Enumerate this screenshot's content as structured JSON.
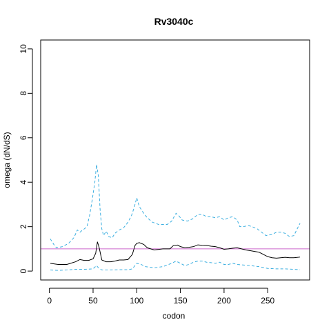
{
  "chart_data": {
    "type": "line",
    "title": "Rv3040c",
    "xlabel": "codon",
    "ylabel": "omega (dN/dS)",
    "xlim": [
      -10,
      298
    ],
    "ylim": [
      -0.4,
      10.4
    ],
    "xticks": [
      0,
      50,
      100,
      150,
      200,
      250
    ],
    "yticks": [
      0,
      2,
      4,
      6,
      8,
      10
    ],
    "grid": false,
    "legend": "none",
    "reference_line": {
      "y": 1,
      "color": "#cc66cc"
    },
    "series": [
      {
        "style": "solid",
        "color": "#000000",
        "points": [
          [
            1,
            0.35
          ],
          [
            10,
            0.3
          ],
          [
            20,
            0.3
          ],
          [
            30,
            0.42
          ],
          [
            35,
            0.52
          ],
          [
            40,
            0.48
          ],
          [
            45,
            0.48
          ],
          [
            50,
            0.55
          ],
          [
            53,
            0.8
          ],
          [
            55,
            1.32
          ],
          [
            57,
            1.05
          ],
          [
            60,
            0.5
          ],
          [
            65,
            0.42
          ],
          [
            70,
            0.42
          ],
          [
            75,
            0.45
          ],
          [
            80,
            0.5
          ],
          [
            85,
            0.5
          ],
          [
            90,
            0.52
          ],
          [
            95,
            0.75
          ],
          [
            98,
            1.15
          ],
          [
            100,
            1.25
          ],
          [
            103,
            1.28
          ],
          [
            108,
            1.2
          ],
          [
            112,
            1.05
          ],
          [
            120,
            0.95
          ],
          [
            130,
            1.0
          ],
          [
            138,
            1.0
          ],
          [
            142,
            1.15
          ],
          [
            147,
            1.17
          ],
          [
            150,
            1.1
          ],
          [
            155,
            1.05
          ],
          [
            160,
            1.07
          ],
          [
            165,
            1.1
          ],
          [
            170,
            1.18
          ],
          [
            175,
            1.16
          ],
          [
            180,
            1.15
          ],
          [
            185,
            1.12
          ],
          [
            190,
            1.1
          ],
          [
            195,
            1.05
          ],
          [
            200,
            0.98
          ],
          [
            205,
            1.0
          ],
          [
            210,
            1.03
          ],
          [
            215,
            1.05
          ],
          [
            220,
            1.0
          ],
          [
            225,
            0.95
          ],
          [
            230,
            0.92
          ],
          [
            240,
            0.85
          ],
          [
            245,
            0.75
          ],
          [
            250,
            0.65
          ],
          [
            255,
            0.6
          ],
          [
            260,
            0.58
          ],
          [
            265,
            0.6
          ],
          [
            270,
            0.62
          ],
          [
            275,
            0.6
          ],
          [
            280,
            0.6
          ],
          [
            287,
            0.63
          ]
        ]
      },
      {
        "style": "dashed",
        "color": "#3aaee0",
        "points": [
          [
            1,
            1.45
          ],
          [
            5,
            1.2
          ],
          [
            8,
            1.05
          ],
          [
            15,
            1.1
          ],
          [
            22,
            1.25
          ],
          [
            28,
            1.5
          ],
          [
            32,
            1.85
          ],
          [
            35,
            1.75
          ],
          [
            38,
            1.85
          ],
          [
            40,
            1.9
          ],
          [
            43,
            2.0
          ],
          [
            46,
            2.5
          ],
          [
            49,
            3.2
          ],
          [
            52,
            4.0
          ],
          [
            54,
            4.8
          ],
          [
            56,
            4.3
          ],
          [
            58,
            2.8
          ],
          [
            60,
            1.9
          ],
          [
            62,
            1.6
          ],
          [
            65,
            1.8
          ],
          [
            68,
            1.55
          ],
          [
            72,
            1.5
          ],
          [
            75,
            1.7
          ],
          [
            80,
            1.85
          ],
          [
            85,
            1.95
          ],
          [
            90,
            2.2
          ],
          [
            94,
            2.5
          ],
          [
            97,
            2.85
          ],
          [
            100,
            3.3
          ],
          [
            103,
            2.9
          ],
          [
            108,
            2.6
          ],
          [
            112,
            2.4
          ],
          [
            118,
            2.2
          ],
          [
            125,
            2.1
          ],
          [
            135,
            2.1
          ],
          [
            140,
            2.25
          ],
          [
            145,
            2.6
          ],
          [
            148,
            2.5
          ],
          [
            152,
            2.3
          ],
          [
            158,
            2.25
          ],
          [
            164,
            2.35
          ],
          [
            170,
            2.55
          ],
          [
            175,
            2.55
          ],
          [
            180,
            2.45
          ],
          [
            185,
            2.45
          ],
          [
            190,
            2.4
          ],
          [
            195,
            2.45
          ],
          [
            200,
            2.3
          ],
          [
            205,
            2.4
          ],
          [
            210,
            2.45
          ],
          [
            215,
            2.3
          ],
          [
            218,
            2.0
          ],
          [
            222,
            2.0
          ],
          [
            228,
            2.05
          ],
          [
            232,
            2.0
          ],
          [
            238,
            1.9
          ],
          [
            243,
            1.75
          ],
          [
            248,
            1.6
          ],
          [
            255,
            1.65
          ],
          [
            260,
            1.75
          ],
          [
            265,
            1.75
          ],
          [
            270,
            1.7
          ],
          [
            275,
            1.55
          ],
          [
            280,
            1.6
          ],
          [
            285,
            2.0
          ],
          [
            287,
            2.15
          ]
        ]
      },
      {
        "style": "dashed",
        "color": "#3aaee0",
        "points": [
          [
            1,
            0.05
          ],
          [
            10,
            0.03
          ],
          [
            20,
            0.05
          ],
          [
            30,
            0.08
          ],
          [
            40,
            0.08
          ],
          [
            50,
            0.1
          ],
          [
            54,
            0.25
          ],
          [
            56,
            0.15
          ],
          [
            60,
            0.05
          ],
          [
            70,
            0.05
          ],
          [
            80,
            0.06
          ],
          [
            90,
            0.06
          ],
          [
            95,
            0.1
          ],
          [
            100,
            0.35
          ],
          [
            105,
            0.3
          ],
          [
            110,
            0.2
          ],
          [
            120,
            0.15
          ],
          [
            130,
            0.2
          ],
          [
            140,
            0.35
          ],
          [
            145,
            0.45
          ],
          [
            150,
            0.35
          ],
          [
            155,
            0.25
          ],
          [
            160,
            0.3
          ],
          [
            165,
            0.4
          ],
          [
            170,
            0.45
          ],
          [
            175,
            0.45
          ],
          [
            180,
            0.4
          ],
          [
            185,
            0.38
          ],
          [
            190,
            0.35
          ],
          [
            195,
            0.4
          ],
          [
            200,
            0.3
          ],
          [
            205,
            0.3
          ],
          [
            210,
            0.35
          ],
          [
            215,
            0.3
          ],
          [
            220,
            0.28
          ],
          [
            230,
            0.25
          ],
          [
            240,
            0.2
          ],
          [
            250,
            0.12
          ],
          [
            260,
            0.1
          ],
          [
            270,
            0.1
          ],
          [
            280,
            0.08
          ],
          [
            287,
            0.06
          ]
        ]
      }
    ]
  }
}
